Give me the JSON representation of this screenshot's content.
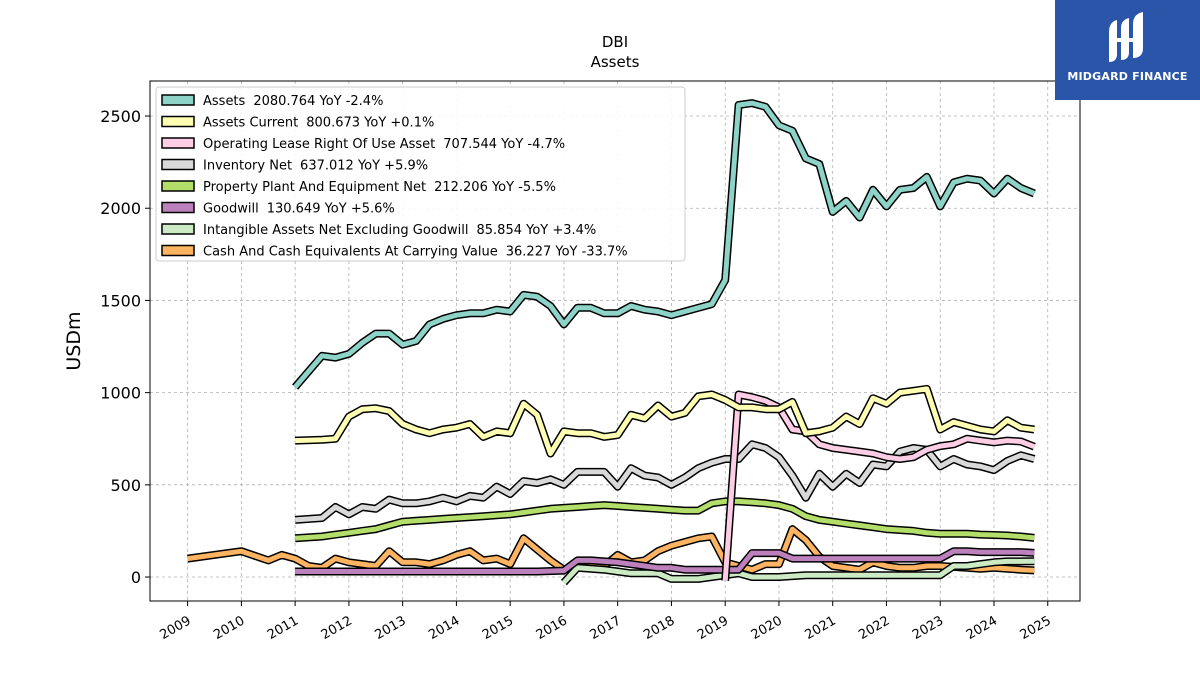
{
  "chart_data": {
    "type": "line",
    "title": "DBI",
    "subtitle": "Assets",
    "ylabel": "USDm",
    "xlabel": "",
    "ylim": [
      -130,
      2690
    ],
    "xlim": [
      2008.3,
      2025.6
    ],
    "yticks": [
      0,
      500,
      1000,
      1500,
      2000,
      2500
    ],
    "xticks": [
      "2009",
      "2010",
      "2011",
      "2012",
      "2013",
      "2014",
      "2015",
      "2016",
      "2017",
      "2018",
      "2019",
      "2020",
      "2021",
      "2022",
      "2023",
      "2024",
      "2025"
    ],
    "grid": true,
    "legend_position": "top-left",
    "series": [
      {
        "name": "Assets",
        "value_label": "2080.764 YoY -2.4%",
        "color": "#8dd3c7",
        "x": [
          2011,
          2011.5,
          2011.75,
          2012,
          2012.25,
          2012.5,
          2012.75,
          2013,
          2013.25,
          2013.5,
          2013.75,
          2014,
          2014.25,
          2014.5,
          2014.75,
          2015,
          2015.25,
          2015.5,
          2015.75,
          2016,
          2016.25,
          2016.5,
          2016.75,
          2017,
          2017.25,
          2017.5,
          2017.75,
          2018,
          2018.25,
          2018.5,
          2018.75,
          2019,
          2019.25,
          2019.5,
          2019.75,
          2020,
          2020.25,
          2020.5,
          2020.75,
          2021,
          2021.25,
          2021.5,
          2021.75,
          2022,
          2022.25,
          2022.5,
          2022.75,
          2023,
          2023.25,
          2023.5,
          2023.75,
          2024,
          2024.25,
          2024.5,
          2024.75
        ],
        "y": [
          1030,
          1200,
          1190,
          1210,
          1270,
          1320,
          1320,
          1260,
          1280,
          1370,
          1400,
          1420,
          1430,
          1430,
          1450,
          1440,
          1530,
          1520,
          1470,
          1370,
          1460,
          1460,
          1430,
          1430,
          1470,
          1450,
          1440,
          1420,
          1440,
          1460,
          1480,
          1610,
          2560,
          2570,
          2550,
          2450,
          2420,
          2270,
          2240,
          1980,
          2040,
          1950,
          2100,
          2010,
          2100,
          2110,
          2170,
          2010,
          2140,
          2160,
          2150,
          2080,
          2160,
          2110,
          2080
        ]
      },
      {
        "name": "Assets Current",
        "value_label": "800.673 YoY +0.1%",
        "color": "#ffffb3",
        "x": [
          2011,
          2011.5,
          2011.75,
          2012,
          2012.25,
          2012.5,
          2012.75,
          2013,
          2013.25,
          2013.5,
          2013.75,
          2014,
          2014.25,
          2014.5,
          2014.75,
          2015,
          2015.25,
          2015.5,
          2015.75,
          2016,
          2016.25,
          2016.5,
          2016.75,
          2017,
          2017.25,
          2017.5,
          2017.75,
          2018,
          2018.25,
          2018.5,
          2018.75,
          2019,
          2019.25,
          2019.5,
          2019.75,
          2020,
          2020.25,
          2020.5,
          2020.75,
          2021,
          2021.25,
          2021.5,
          2021.75,
          2022,
          2022.25,
          2022.5,
          2022.75,
          2023,
          2023.25,
          2023.5,
          2023.75,
          2024,
          2024.25,
          2024.5,
          2024.75
        ],
        "y": [
          740,
          745,
          750,
          870,
          910,
          915,
          900,
          830,
          800,
          780,
          800,
          810,
          830,
          760,
          790,
          780,
          940,
          880,
          670,
          790,
          780,
          780,
          760,
          770,
          880,
          860,
          930,
          870,
          890,
          980,
          990,
          960,
          920,
          920,
          910,
          910,
          950,
          780,
          790,
          810,
          870,
          830,
          970,
          940,
          1000,
          1010,
          1020,
          800,
          840,
          820,
          800,
          790,
          850,
          810,
          800
        ]
      },
      {
        "name": "Operating Lease Right Of Use Asset",
        "value_label": "707.544 YoY -4.7%",
        "color": "#fccde5",
        "x": [
          2019,
          2019.25,
          2019.5,
          2019.75,
          2020,
          2020.25,
          2020.5,
          2020.75,
          2021,
          2021.25,
          2021.5,
          2021.75,
          2022,
          2022.25,
          2022.5,
          2022.75,
          2023,
          2023.25,
          2023.5,
          2023.75,
          2024,
          2024.25,
          2024.5,
          2024.75
        ],
        "y": [
          -20,
          990,
          975,
          955,
          920,
          800,
          790,
          720,
          700,
          690,
          680,
          670,
          650,
          640,
          650,
          690,
          710,
          720,
          750,
          740,
          730,
          740,
          735,
          707
        ]
      },
      {
        "name": "Inventory Net",
        "value_label": "637.012 YoY +5.9%",
        "color": "#d9d9d9",
        "x": [
          2011,
          2011.5,
          2011.75,
          2012,
          2012.25,
          2012.5,
          2012.75,
          2013,
          2013.25,
          2013.5,
          2013.75,
          2014,
          2014.25,
          2014.5,
          2014.75,
          2015,
          2015.25,
          2015.5,
          2015.75,
          2016,
          2016.25,
          2016.5,
          2016.75,
          2017,
          2017.25,
          2017.5,
          2017.75,
          2018,
          2018.25,
          2018.5,
          2018.75,
          2019,
          2019.25,
          2019.5,
          2019.75,
          2020,
          2020.25,
          2020.5,
          2020.75,
          2021,
          2021.25,
          2021.5,
          2021.75,
          2022,
          2022.25,
          2022.5,
          2022.75,
          2023,
          2023.25,
          2023.5,
          2023.75,
          2024,
          2024.25,
          2024.5,
          2024.75
        ],
        "y": [
          310,
          320,
          380,
          340,
          380,
          370,
          420,
          400,
          400,
          410,
          430,
          410,
          440,
          430,
          490,
          450,
          520,
          510,
          530,
          500,
          570,
          570,
          570,
          490,
          590,
          550,
          540,
          500,
          540,
          590,
          620,
          640,
          640,
          720,
          700,
          650,
          550,
          430,
          560,
          490,
          560,
          510,
          610,
          600,
          680,
          700,
          690,
          600,
          640,
          610,
          600,
          580,
          630,
          660,
          640
        ]
      },
      {
        "name": "Property Plant And Equipment Net",
        "value_label": "212.206 YoY -5.5%",
        "color": "#b3de69",
        "x": [
          2011,
          2011.5,
          2011.75,
          2012,
          2012.25,
          2012.5,
          2012.75,
          2013,
          2013.25,
          2013.5,
          2013.75,
          2014,
          2014.25,
          2014.5,
          2014.75,
          2015,
          2015.25,
          2015.5,
          2015.75,
          2016,
          2016.25,
          2016.5,
          2016.75,
          2017,
          2017.25,
          2017.5,
          2017.75,
          2018,
          2018.25,
          2018.5,
          2018.75,
          2019,
          2019.25,
          2019.5,
          2019.75,
          2020,
          2020.25,
          2020.5,
          2020.75,
          2021,
          2021.25,
          2021.5,
          2021.75,
          2022,
          2022.25,
          2022.5,
          2022.75,
          2023,
          2023.25,
          2023.5,
          2023.75,
          2024,
          2024.25,
          2024.5,
          2024.75
        ],
        "y": [
          210,
          220,
          230,
          240,
          250,
          260,
          280,
          300,
          305,
          310,
          315,
          320,
          325,
          330,
          335,
          340,
          350,
          360,
          370,
          375,
          380,
          385,
          390,
          385,
          380,
          375,
          370,
          365,
          360,
          360,
          400,
          410,
          410,
          405,
          400,
          390,
          370,
          330,
          310,
          300,
          290,
          280,
          270,
          260,
          255,
          250,
          240,
          235,
          235,
          235,
          230,
          228,
          225,
          220,
          212
        ]
      },
      {
        "name": "Goodwill",
        "value_label": "130.649 YoY +5.6%",
        "color": "#bc80bd",
        "x": [
          2011,
          2015.5,
          2016,
          2016.25,
          2016.5,
          2016.75,
          2017,
          2017.25,
          2017.5,
          2017.75,
          2018,
          2018.25,
          2018.5,
          2018.75,
          2019,
          2019.25,
          2019.5,
          2019.75,
          2020,
          2020.25,
          2020.5,
          2021,
          2021.5,
          2022,
          2022.5,
          2023,
          2023.25,
          2023.5,
          2023.75,
          2024,
          2024.25,
          2024.5,
          2024.75
        ],
        "y": [
          30,
          30,
          35,
          90,
          90,
          85,
          80,
          70,
          60,
          50,
          50,
          40,
          40,
          40,
          40,
          40,
          130,
          130,
          130,
          100,
          100,
          100,
          100,
          100,
          100,
          100,
          140,
          140,
          135,
          135,
          135,
          135,
          131
        ]
      },
      {
        "name": "Intangible Assets Net Excluding Goodwill",
        "value_label": "85.854 YoY +3.4%",
        "color": "#ccebc5",
        "x": [
          2016,
          2016.25,
          2016.5,
          2016.75,
          2017,
          2017.25,
          2017.5,
          2017.75,
          2018,
          2018.25,
          2018.5,
          2018.75,
          2019,
          2019.25,
          2019.5,
          2019.75,
          2020,
          2020.25,
          2020.5,
          2021,
          2021.5,
          2022,
          2022.5,
          2023,
          2023.25,
          2023.5,
          2023.75,
          2024,
          2024.25,
          2024.5,
          2024.75
        ],
        "y": [
          -30,
          50,
          45,
          40,
          30,
          20,
          20,
          20,
          -10,
          -10,
          -10,
          0,
          10,
          20,
          0,
          0,
          0,
          5,
          10,
          10,
          10,
          10,
          10,
          10,
          60,
          60,
          70,
          80,
          85,
          85,
          86
        ]
      },
      {
        "name": "Cash And Cash Equivalents At Carrying Value",
        "value_label": "36.227 YoY -33.7%",
        "color": "#fdb462",
        "x": [
          2009,
          2010,
          2010.5,
          2010.75,
          2011,
          2011.25,
          2011.5,
          2011.75,
          2012,
          2012.25,
          2012.5,
          2012.75,
          2013,
          2013.25,
          2013.5,
          2013.75,
          2014,
          2014.25,
          2014.5,
          2014.75,
          2015,
          2015.25,
          2015.5,
          2015.75,
          2016,
          2016.25,
          2016.5,
          2016.75,
          2017,
          2017.25,
          2017.5,
          2017.75,
          2018,
          2018.25,
          2018.5,
          2018.75,
          2019,
          2019.25,
          2019.5,
          2019.75,
          2020,
          2020.25,
          2020.5,
          2020.75,
          2021,
          2021.25,
          2021.5,
          2021.75,
          2022,
          2022.25,
          2022.5,
          2022.75,
          2023,
          2023.25,
          2023.5,
          2023.75,
          2024,
          2024.25,
          2024.5,
          2024.75
        ],
        "y": [
          100,
          140,
          90,
          120,
          100,
          60,
          50,
          100,
          80,
          70,
          60,
          140,
          80,
          80,
          70,
          90,
          120,
          140,
          90,
          100,
          70,
          210,
          150,
          90,
          40,
          60,
          60,
          60,
          120,
          80,
          90,
          140,
          170,
          190,
          210,
          220,
          80,
          60,
          40,
          70,
          70,
          260,
          200,
          110,
          60,
          50,
          40,
          80,
          60,
          50,
          50,
          60,
          60,
          55,
          50,
          45,
          50,
          45,
          40,
          36
        ]
      }
    ]
  },
  "branding": {
    "name": "MIDGARD FINANCE",
    "background": "#2a55a8"
  }
}
